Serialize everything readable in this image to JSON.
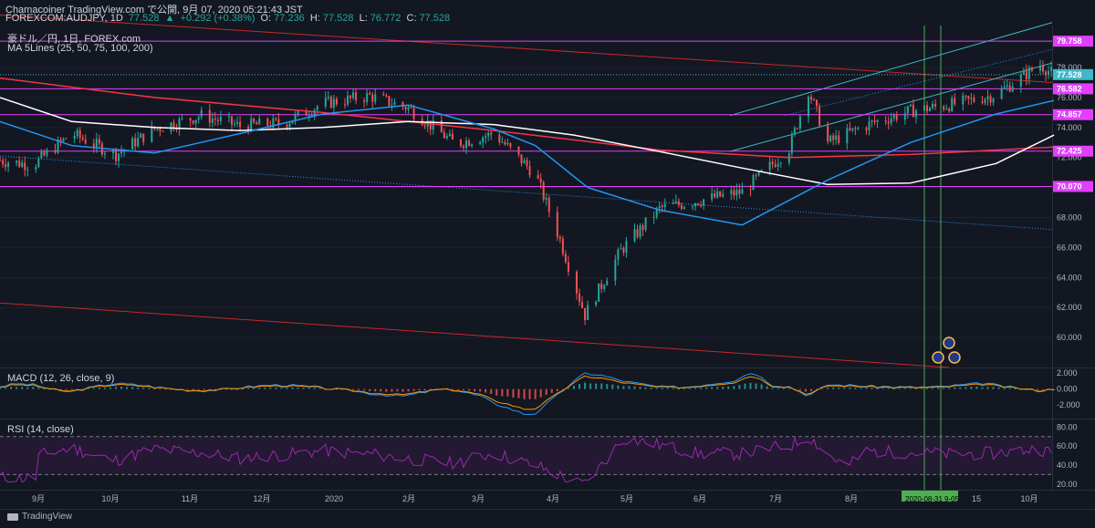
{
  "header": {
    "line1": "Chamacoiner TradingView.com で公開, 9月 07, 2020 05:21:43 JST",
    "symbol": "FOREXCOM:AUDJPY, 1D",
    "price": "77.528",
    "change": "+0.292 (+0.38%)",
    "o_label": "O:",
    "o": "77.236",
    "h_label": "H:",
    "h": "77.528",
    "l_label": "L:",
    "l": "76.772",
    "c_label": "C:",
    "c": "77.528"
  },
  "main_pane": {
    "title": "豪ドル／円, 1日, FOREX.com",
    "indicator": "MA 5Lines (25, 50, 75, 100, 200)"
  },
  "macd_pane": {
    "title": "MACD (12, 26, close, 9)"
  },
  "rsi_pane": {
    "title": "RSI (14, close)"
  },
  "footer": {
    "brand": "TradingView"
  },
  "colors": {
    "background": "#131722",
    "up": "#26a69a",
    "down": "#ef5350",
    "ma25": "#2196f3",
    "ma200": "#ffffff",
    "ma_long": "#f23645",
    "level": "#e040fb",
    "channel": "#3fb8c8",
    "vline": "#4caf50",
    "rsi": "#9c27b0"
  },
  "chart_data": [
    {
      "type": "candlestick",
      "ylim": [
        58,
        80.8
      ],
      "y_ticks": [
        "78.000",
        "76.000",
        "74.000",
        "72.000",
        "70.000",
        "68.000",
        "66.000",
        "64.000",
        "62.000",
        "60.000"
      ],
      "x_ticks": [
        "9月",
        "10月",
        "11月",
        "12月",
        "2020",
        "2月",
        "3月",
        "4月",
        "5月",
        "6月",
        "7月",
        "8月",
        "15",
        "10月"
      ],
      "price_labels": [
        {
          "value": 79.758,
          "text": "79.758",
          "kind": "level"
        },
        {
          "value": 77.528,
          "text": "77.528",
          "kind": "last"
        },
        {
          "value": 76.582,
          "text": "76.582",
          "kind": "level"
        },
        {
          "value": 74.857,
          "text": "74.857",
          "kind": "level"
        },
        {
          "value": 72.425,
          "text": "72.425",
          "kind": "level"
        },
        {
          "value": 70.07,
          "text": "70.070",
          "kind": "level"
        }
      ],
      "date_range_label": "2020-08-31",
      "date_range_label2": "9-05",
      "monthly_path": [
        [
          "2019-08-20",
          71.8
        ],
        [
          "2019-09-01",
          71.5
        ],
        [
          "2019-09-15",
          73.6
        ],
        [
          "2019-10-01",
          72.2
        ],
        [
          "2019-10-15",
          73.9
        ],
        [
          "2019-11-01",
          74.8
        ],
        [
          "2019-11-15",
          74.1
        ],
        [
          "2019-12-01",
          74.3
        ],
        [
          "2019-12-15",
          75.6
        ],
        [
          "2020-01-01",
          76.1
        ],
        [
          "2020-01-15",
          75.3
        ],
        [
          "2020-02-01",
          72.9
        ],
        [
          "2020-02-15",
          73.6
        ],
        [
          "2020-03-01",
          70.9
        ],
        [
          "2020-03-10",
          66.5
        ],
        [
          "2020-03-19",
          61.5
        ],
        [
          "2020-04-01",
          65.8
        ],
        [
          "2020-04-15",
          68.6
        ],
        [
          "2020-05-01",
          69.2
        ],
        [
          "2020-05-15",
          69.7
        ],
        [
          "2020-06-01",
          72.6
        ],
        [
          "2020-06-08",
          76.5
        ],
        [
          "2020-06-15",
          73.0
        ],
        [
          "2020-07-01",
          74.3
        ],
        [
          "2020-07-15",
          75.1
        ],
        [
          "2020-08-01",
          75.6
        ],
        [
          "2020-08-15",
          76.2
        ],
        [
          "2020-08-31",
          78.2
        ],
        [
          "2020-09-05",
          77.5
        ]
      ],
      "ma25": [
        [
          "2019-08-20",
          74.4
        ],
        [
          "2019-09-15",
          72.8
        ],
        [
          "2019-10-15",
          72.3
        ],
        [
          "2019-11-15",
          73.6
        ],
        [
          "2019-12-15",
          74.9
        ],
        [
          "2020-01-15",
          75.5
        ],
        [
          "2020-02-15",
          73.9
        ],
        [
          "2020-03-01",
          72.8
        ],
        [
          "2020-03-20",
          70.0
        ],
        [
          "2020-04-15",
          68.5
        ],
        [
          "2020-05-15",
          67.5
        ],
        [
          "2020-06-15",
          70.5
        ],
        [
          "2020-07-15",
          73.0
        ],
        [
          "2020-08-15",
          74.9
        ],
        [
          "2020-09-05",
          75.8
        ]
      ],
      "ma200": [
        [
          "2019-08-20",
          76.0
        ],
        [
          "2019-09-15",
          74.4
        ],
        [
          "2019-10-15",
          74.0
        ],
        [
          "2019-11-15",
          73.8
        ],
        [
          "2019-12-15",
          74.0
        ],
        [
          "2020-01-15",
          74.4
        ],
        [
          "2020-02-15",
          74.2
        ],
        [
          "2020-03-15",
          73.5
        ],
        [
          "2020-04-15",
          72.4
        ],
        [
          "2020-05-15",
          71.3
        ],
        [
          "2020-06-15",
          70.2
        ],
        [
          "2020-07-15",
          70.3
        ],
        [
          "2020-08-15",
          71.6
        ],
        [
          "2020-09-05",
          73.5
        ]
      ],
      "ma_long": [
        [
          "2019-08-20",
          77.3
        ],
        [
          "2019-10-15",
          76.0
        ],
        [
          "2019-12-15",
          75.0
        ],
        [
          "2020-02-15",
          73.8
        ],
        [
          "2020-04-15",
          72.5
        ],
        [
          "2020-06-01",
          72.0
        ],
        [
          "2020-07-15",
          72.2
        ],
        [
          "2020-09-05",
          72.7
        ]
      ]
    },
    {
      "type": "macd_histogram",
      "y_ticks": [
        "2.000",
        "0.000",
        "-2.000"
      ],
      "ylim": [
        -3.6,
        2.6
      ]
    },
    {
      "type": "rsi_line",
      "y_ticks": [
        "80.00",
        "60.00",
        "40.00",
        "20.00"
      ],
      "ylim": [
        15,
        88
      ],
      "bands": [
        70,
        30
      ]
    }
  ]
}
